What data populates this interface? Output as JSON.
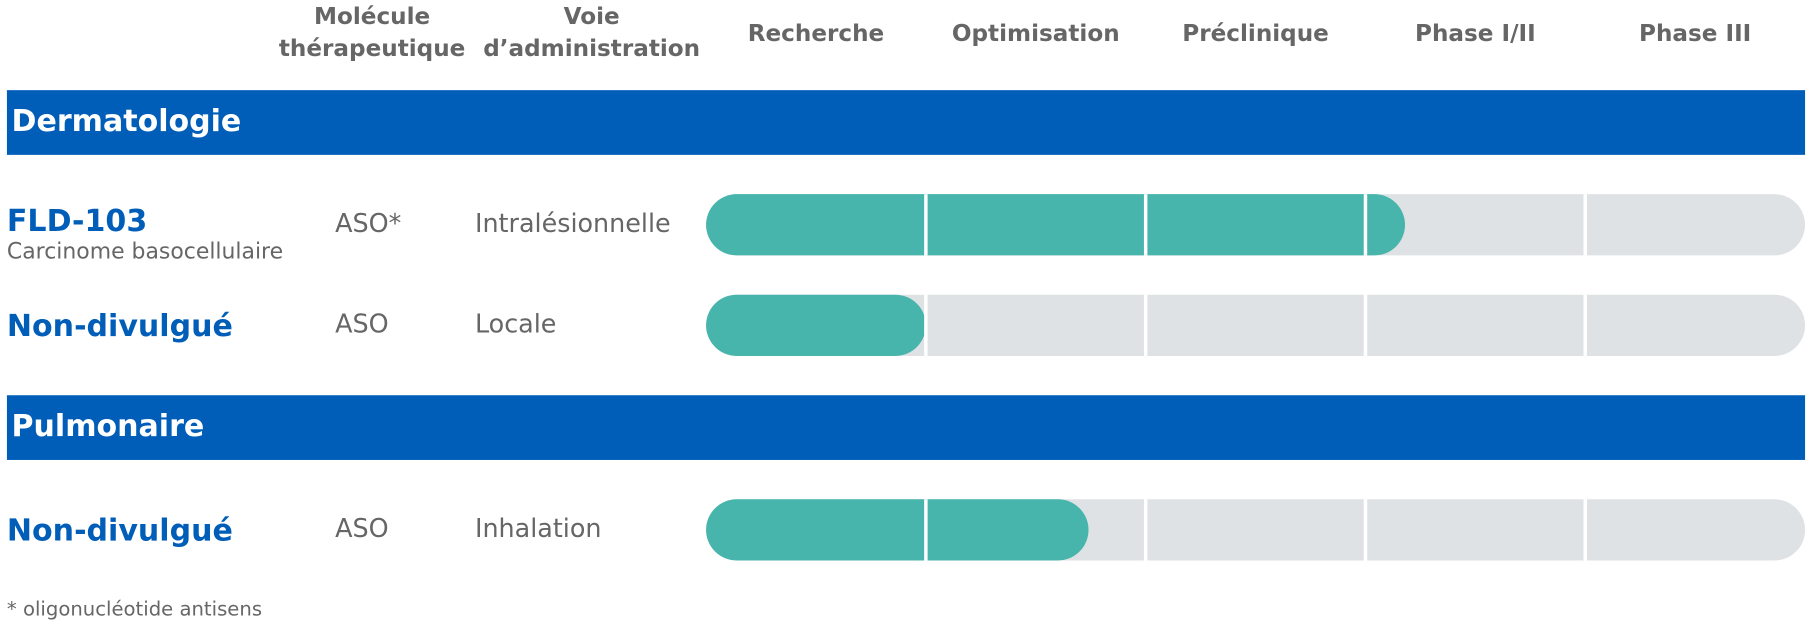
{
  "chart_data": {
    "type": "pipeline",
    "info_columns": [
      [
        "Molécule",
        "thérapeutique"
      ],
      [
        "Voie",
        "d’administration"
      ]
    ],
    "phases": [
      "Recherche",
      "Optimisation",
      "Préclinique",
      "Phase I/II",
      "Phase III"
    ],
    "xlim": [
      0,
      5
    ],
    "sections": [
      {
        "name": "Dermatologie",
        "programs": [
          {
            "name": "FLD-103",
            "subtitle": "Carcinome basocellulaire",
            "molecule": "ASO*",
            "route": "Intralésionnelle",
            "progress": 3.18
          },
          {
            "name": "Non-divulgué",
            "molecule": "ASO",
            "route": "Locale",
            "progress": 1.0
          }
        ]
      },
      {
        "name": "Pulmonaire",
        "programs": [
          {
            "name": "Non-divulgué",
            "molecule": "ASO",
            "route": "Inhalation",
            "progress": 1.74
          }
        ]
      }
    ],
    "footnote": "* oligonucléotide antisens",
    "colors": {
      "band": "#005eb8",
      "progress": "#47b5ab",
      "track": "#dfe2e5"
    }
  }
}
